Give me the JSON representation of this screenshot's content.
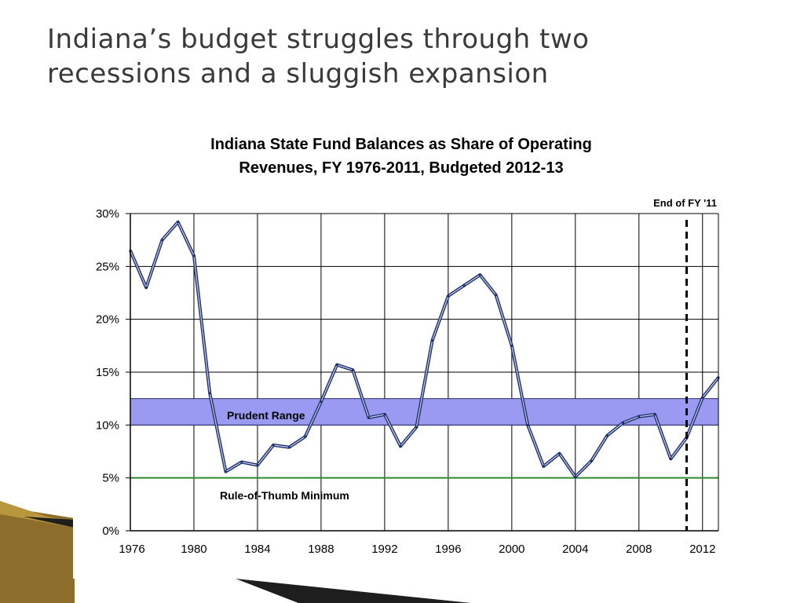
{
  "slide": {
    "title_line1": "Indiana’s budget struggles through two",
    "title_line2": "recessions and a sluggish expansion"
  },
  "chart_data": {
    "type": "line",
    "title_line1": "Indiana State Fund Balances as Share of Operating",
    "title_line2": "Revenues, FY 1976-2011, Budgeted 2012-13",
    "xlabel": "",
    "ylabel": "",
    "xlim": [
      1976,
      2013
    ],
    "ylim": [
      0,
      30
    ],
    "x_ticks": [
      1976,
      1980,
      1984,
      1988,
      1992,
      1996,
      2000,
      2004,
      2008,
      2012
    ],
    "x_tick_labels": [
      "1976",
      "1980",
      "1984",
      "1988",
      "1992",
      "1996",
      "2000",
      "2004",
      "2008",
      "2012"
    ],
    "y_ticks": [
      0,
      5,
      10,
      15,
      20,
      25,
      30
    ],
    "y_tick_labels": [
      "0%",
      "5%",
      "10%",
      "15%",
      "20%",
      "25%",
      "30%"
    ],
    "grid": true,
    "series": [
      {
        "color": "#1f2f6b",
        "x": [
          1976,
          1977,
          1978,
          1979,
          1980,
          1981,
          1982,
          1983,
          1984,
          1985,
          1986,
          1987,
          1988,
          1989,
          1990,
          1991,
          1992,
          1993,
          1994,
          1995,
          1996,
          1997,
          1998,
          1999,
          2000,
          2001,
          2002,
          2003,
          2004,
          2005,
          2006,
          2007,
          2008,
          2009,
          2010,
          2011,
          2012,
          2013
        ],
        "y": [
          26.5,
          23.0,
          27.5,
          29.2,
          26.0,
          13.0,
          5.6,
          6.5,
          6.2,
          8.1,
          7.9,
          8.9,
          12.2,
          15.7,
          15.2,
          10.7,
          11.0,
          8.0,
          9.8,
          18.0,
          22.2,
          23.2,
          24.2,
          22.3,
          17.5,
          10.0,
          6.1,
          7.3,
          5.1,
          6.6,
          9.0,
          10.2,
          10.8,
          11.0,
          6.8,
          8.8,
          12.6,
          14.5
        ]
      }
    ],
    "annotations": {
      "prudent_range": {
        "label": "Prudent Range",
        "y_min": 10,
        "y_max": 12.5,
        "color": "#9a9af2"
      },
      "minimum_line": {
        "label": "Rule-of-Thumb Minimum",
        "y": 5,
        "color": "#2e8b2e"
      },
      "end_marker": {
        "label": "End of FY '11",
        "x": 2011
      }
    },
    "colors": {
      "line": "#1f2f6b",
      "line_highlight": "#c9d3ee",
      "band": "#9a9af2",
      "band_border": "#2a2a6a",
      "minimum": "#2e8b2e",
      "grid": "#000000",
      "decor_gold": "#8c6d2c",
      "decor_dark": "#1e1e1e"
    }
  }
}
